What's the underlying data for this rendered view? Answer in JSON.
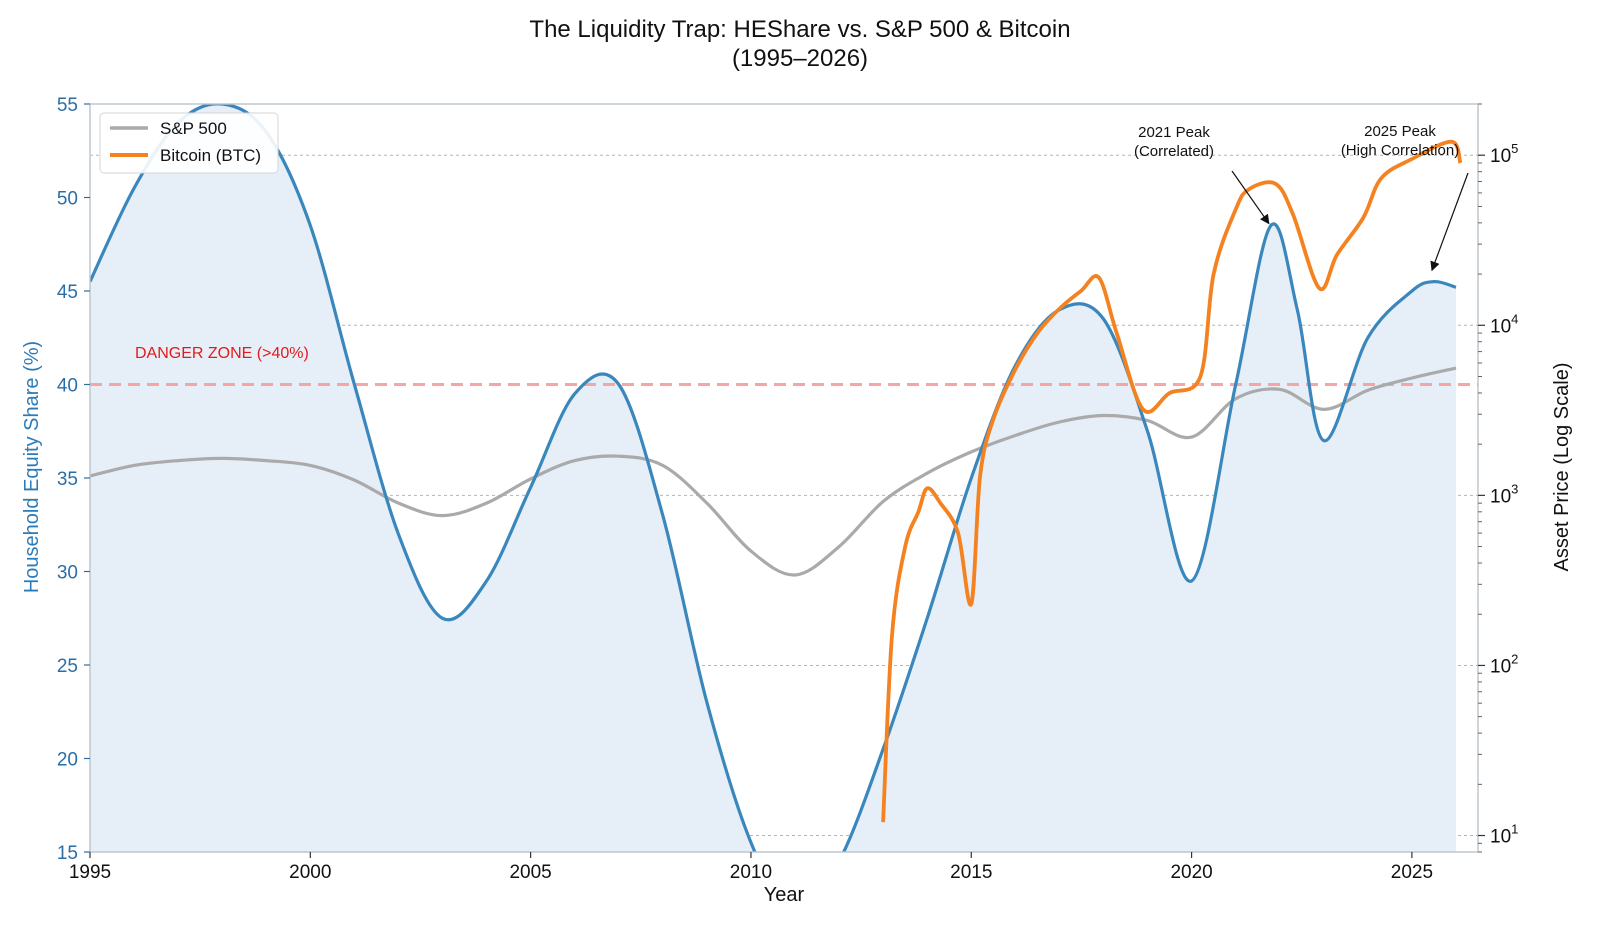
{
  "chart_data": {
    "type": "line",
    "title": "The Liquidity Trap: HEShare vs. S&P 500 & Bitcoin",
    "subtitle": "(1995–2026)",
    "xlabel": "Year",
    "ylabel_left": "Household Equity Share (%)",
    "ylabel_right": "Asset Price (Log Scale)",
    "xlim": [
      1995,
      2026.5
    ],
    "ylim_left": [
      15,
      55
    ],
    "ylim_right": [
      8,
      200000
    ],
    "right_scale": "log",
    "x_ticks": [
      "1995",
      "2000",
      "2005",
      "2010",
      "2015",
      "2020",
      "2025"
    ],
    "y_left_ticks": [
      "15",
      "20",
      "25",
      "30",
      "35",
      "40",
      "45",
      "50",
      "55"
    ],
    "y_right_ticks": [
      {
        "base": "10",
        "exp": "1",
        "value": 10
      },
      {
        "base": "10",
        "exp": "2",
        "value": 100
      },
      {
        "base": "10",
        "exp": "3",
        "value": 1000
      },
      {
        "base": "10",
        "exp": "4",
        "value": 10000
      },
      {
        "base": "10",
        "exp": "5",
        "value": 100000
      }
    ],
    "grid": "horizontal, right axis",
    "legend_position": "top-left",
    "colors": {
      "heshare": "#3a87bd",
      "heshare_fill": "#e6eff7",
      "sp500": "#aaaaaa",
      "btc": "#f58220",
      "danger": "#f4a6a6",
      "danger_text": "#e31a1c"
    },
    "legend": [
      {
        "name": "S&P 500",
        "color": "#aaaaaa"
      },
      {
        "name": "Bitcoin (BTC)",
        "color": "#f58220"
      }
    ],
    "danger_zone": {
      "y": 40,
      "label": "DANGER ZONE (>40%)"
    },
    "series": [
      {
        "key": "heshare",
        "axis": "left",
        "x": [
          1995,
          1996,
          1997,
          1998,
          1999,
          2000,
          2001,
          2002,
          2003,
          2004,
          2005,
          2006,
          2007,
          2008,
          2009,
          2010,
          2011,
          2012,
          2013,
          2014,
          2015,
          2016,
          2017,
          2018,
          2019,
          2020,
          2021,
          2021.8,
          2022.4,
          2023,
          2024,
          2025,
          2025.5,
          2026
        ],
        "values": [
          45.5,
          50.5,
          54.0,
          55.0,
          53.5,
          48.5,
          40.0,
          32.0,
          27.5,
          29.5,
          34.5,
          39.5,
          40.0,
          33.0,
          23.0,
          15.5,
          11.5,
          14.5,
          20.5,
          27.5,
          35.0,
          41.0,
          44.0,
          43.5,
          37.5,
          29.5,
          40.0,
          48.5,
          44.0,
          37.0,
          42.5,
          45.0,
          45.5,
          45.2
        ]
      },
      {
        "key": "sp500",
        "axis": "right",
        "x": [
          1995,
          1996,
          1997,
          1998,
          1999,
          2000,
          2001,
          2002,
          2003,
          2004,
          2005,
          2006,
          2007,
          2008,
          2009,
          2010,
          2011,
          2012,
          2013,
          2014,
          2015,
          2016,
          2017,
          2018,
          2019,
          2020,
          2021,
          2022,
          2023,
          2024,
          2025,
          2026
        ],
        "values": [
          1300,
          1500,
          1600,
          1650,
          1600,
          1500,
          1230,
          900,
          760,
          900,
          1250,
          1600,
          1700,
          1500,
          900,
          470,
          340,
          500,
          920,
          1350,
          1800,
          2250,
          2700,
          2950,
          2750,
          2200,
          3700,
          4200,
          3200,
          4150,
          4900,
          5600
        ]
      },
      {
        "key": "btc",
        "axis": "right",
        "x": [
          2013.0,
          2013.2,
          2013.5,
          2013.8,
          2014.0,
          2014.3,
          2014.7,
          2015.0,
          2015.2,
          2015.5,
          2016.0,
          2016.5,
          2017.0,
          2017.5,
          2017.9,
          2018.3,
          2018.9,
          2019.5,
          2020.2,
          2020.5,
          2021.0,
          2021.3,
          2021.9,
          2022.3,
          2022.9,
          2023.3,
          2023.9,
          2024.3,
          2025.0,
          2025.9,
          2026.1
        ],
        "values": [
          12,
          150,
          500,
          800,
          1100,
          900,
          600,
          230,
          1300,
          2800,
          5500,
          9000,
          12500,
          16000,
          19000,
          9000,
          3200,
          4000,
          5000,
          20000,
          48000,
          63000,
          68000,
          45000,
          16500,
          26000,
          43000,
          73000,
          95000,
          120000,
          90000
        ]
      }
    ],
    "annotations": [
      {
        "text": [
          "2021 Peak",
          "(Correlated)"
        ],
        "target_x": 2021.8,
        "target_y": 48.5
      },
      {
        "text": [
          "2025 Peak",
          "(High Correlation)"
        ],
        "target_x": 2025.5,
        "target_y": 46.0
      }
    ]
  }
}
